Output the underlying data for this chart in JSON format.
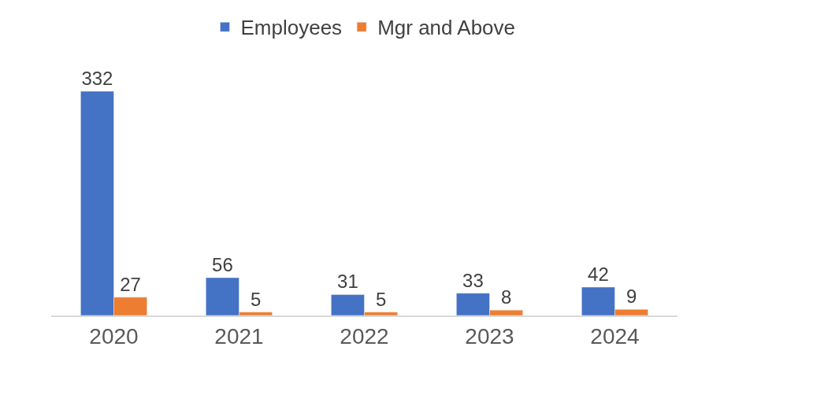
{
  "chart_data": {
    "type": "bar",
    "categories": [
      "2020",
      "2021",
      "2022",
      "2023",
      "2024"
    ],
    "series": [
      {
        "name": "Employees",
        "color": "#4472c4",
        "values": [
          332,
          56,
          31,
          33,
          42
        ]
      },
      {
        "name": "Mgr and Above",
        "color": "#ed7d31",
        "values": [
          27,
          5,
          5,
          8,
          9
        ]
      }
    ],
    "data_labels": true,
    "legend": "top"
  }
}
